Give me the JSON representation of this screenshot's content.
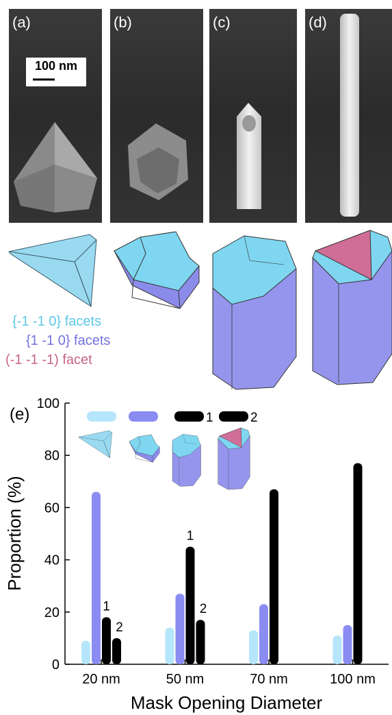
{
  "panels": {
    "labels": [
      "(a)",
      "(b)",
      "(c)",
      "(d)"
    ],
    "scale_bar": "100 nm"
  },
  "facet_legend": [
    {
      "label": "{-1 -1 0} facets",
      "color": "#5cc8e8"
    },
    {
      "label": "{1 -1 0} facets",
      "color": "#7272e0"
    },
    {
      "label": "(-1 -1 -1) facet",
      "color": "#c8648c"
    }
  ],
  "chart_data": {
    "type": "bar",
    "panel_label": "(e)",
    "xlabel": "Mask Opening Diameter",
    "ylabel": "Proportion (%)",
    "categories": [
      "20 nm",
      "50 nm",
      "70 nm",
      "100 nm"
    ],
    "series": [
      {
        "color": "#b5e6fb",
        "values": [
          9,
          14,
          13,
          11
        ]
      },
      {
        "color": "#8a8cf2",
        "values": [
          66,
          27,
          23,
          15
        ]
      },
      {
        "name": "1",
        "color": "#000000",
        "values": [
          18,
          45,
          67,
          77
        ]
      },
      {
        "name": "2",
        "color": "#000000",
        "values": [
          10,
          17,
          null,
          null
        ]
      }
    ],
    "ylim": [
      0,
      100
    ],
    "yticks": [
      0,
      20,
      40,
      60,
      80,
      100
    ]
  }
}
